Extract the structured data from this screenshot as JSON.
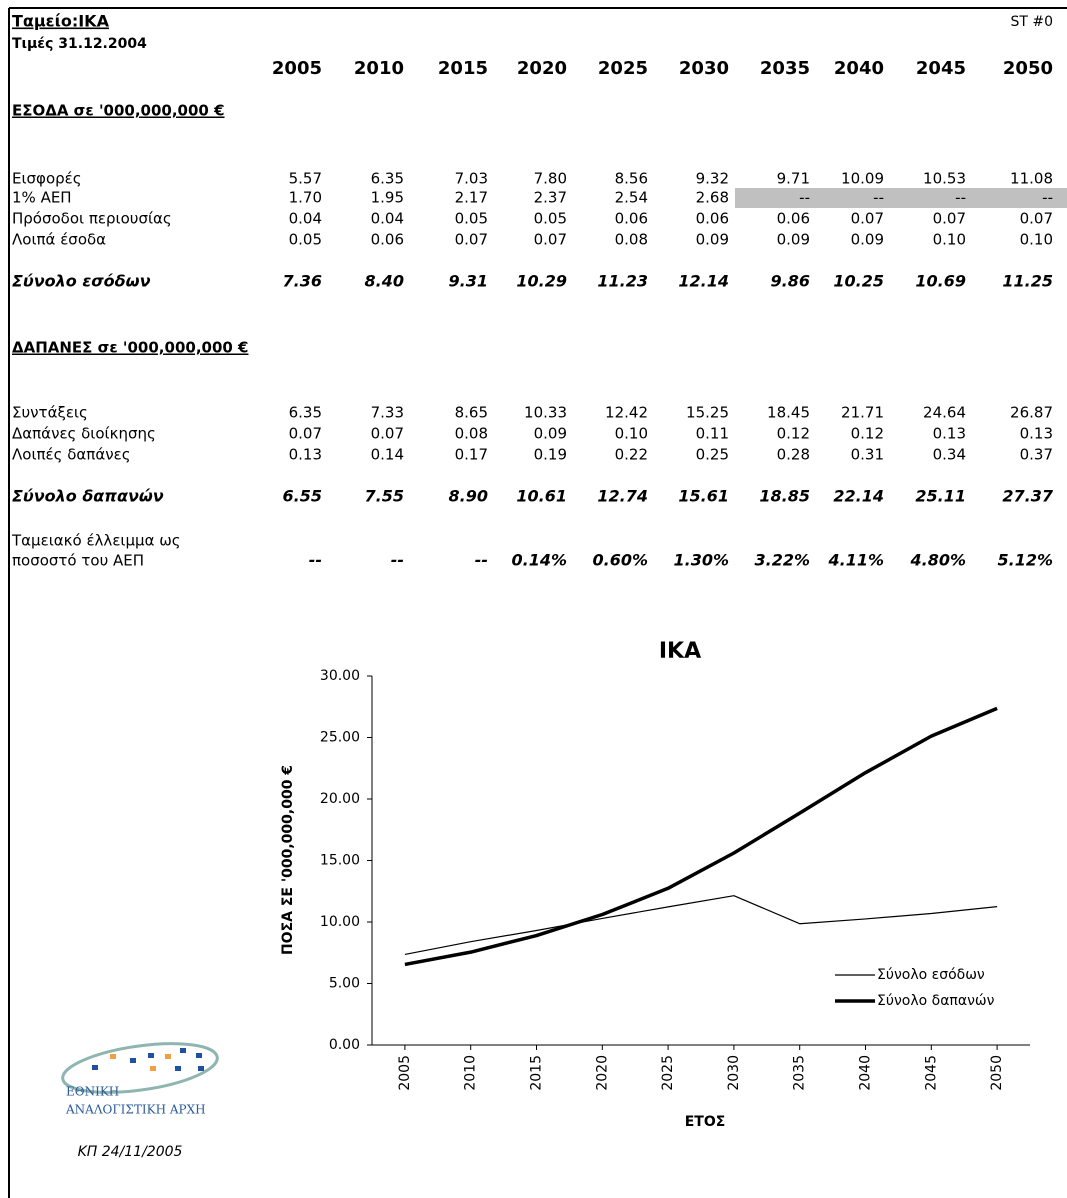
{
  "header": {
    "title": "Ταμείο:ΙΚΑ",
    "subtitle": "Τιμές 31.12.2004",
    "code": "ST #0"
  },
  "table": {
    "years": [
      "2005",
      "2010",
      "2015",
      "2020",
      "2025",
      "2030",
      "2035",
      "2040",
      "2045",
      "2050"
    ],
    "income": {
      "heading": "ΕΣΟΔΑ σε '000,000,000 €",
      "rows": [
        {
          "label": "Εισφορές",
          "values": [
            "5.57",
            "6.35",
            "7.03",
            "7.80",
            "8.56",
            "9.32",
            "9.71",
            "10.09",
            "10.53",
            "11.08"
          ]
        },
        {
          "label": "1% ΑΕΠ",
          "values": [
            "1.70",
            "1.95",
            "2.17",
            "2.37",
            "2.54",
            "2.68",
            "--",
            "--",
            "--",
            "--"
          ]
        },
        {
          "label": "Πρόσοδοι περιουσίας",
          "values": [
            "0.04",
            "0.04",
            "0.05",
            "0.05",
            "0.06",
            "0.06",
            "0.06",
            "0.07",
            "0.07",
            "0.07"
          ]
        },
        {
          "label": "Λοιπά έσοδα",
          "values": [
            "0.05",
            "0.06",
            "0.07",
            "0.07",
            "0.08",
            "0.09",
            "0.09",
            "0.09",
            "0.10",
            "0.10"
          ]
        }
      ],
      "total": {
        "label": "Σύνολο εσόδων",
        "values": [
          "7.36",
          "8.40",
          "9.31",
          "10.29",
          "11.23",
          "12.14",
          "9.86",
          "10.25",
          "10.69",
          "11.25"
        ]
      }
    },
    "expenses": {
      "heading": "ΔΑΠΑΝΕΣ σε '000,000,000 €",
      "rows": [
        {
          "label": "Συντάξεις",
          "values": [
            "6.35",
            "7.33",
            "8.65",
            "10.33",
            "12.42",
            "15.25",
            "18.45",
            "21.71",
            "24.64",
            "26.87"
          ]
        },
        {
          "label": "Δαπάνες διοίκησης",
          "values": [
            "0.07",
            "0.07",
            "0.08",
            "0.09",
            "0.10",
            "0.11",
            "0.12",
            "0.12",
            "0.13",
            "0.13"
          ]
        },
        {
          "label": "Λοιπές δαπάνες",
          "values": [
            "0.13",
            "0.14",
            "0.17",
            "0.19",
            "0.22",
            "0.25",
            "0.28",
            "0.31",
            "0.34",
            "0.37"
          ]
        }
      ],
      "total": {
        "label": "Σύνολο δαπανών",
        "values": [
          "6.55",
          "7.55",
          "8.90",
          "10.61",
          "12.74",
          "15.61",
          "18.85",
          "22.14",
          "25.11",
          "27.37"
        ]
      }
    },
    "deficit": {
      "label": [
        "Ταμειακό έλλειμμα ως",
        "ποσοστό του ΑΕΠ"
      ],
      "values": [
        "--",
        "--",
        "--",
        "0.14%",
        "0.60%",
        "1.30%",
        "3.22%",
        "4.11%",
        "4.80%",
        "5.12%"
      ]
    }
  },
  "chart_data": {
    "type": "line",
    "title": "ΙΚΑ",
    "x_label": "ΕΤΟΣ",
    "y_label": "ΠΟΣΑ ΣΕ '000,000,000 €",
    "x": [
      2005,
      2010,
      2015,
      2020,
      2025,
      2030,
      2035,
      2040,
      2045,
      2050
    ],
    "xlim": [
      2002.5,
      2052.5
    ],
    "xticks": [
      2005,
      2010,
      2015,
      2020,
      2025,
      2030,
      2035,
      2040,
      2045,
      2050
    ],
    "ylim": [
      0,
      30
    ],
    "yticks": [
      {
        "value": 0,
        "label": "0.00"
      },
      {
        "value": 5,
        "label": "5.00"
      },
      {
        "value": 10,
        "label": "10.00"
      },
      {
        "value": 15,
        "label": "15.00"
      },
      {
        "value": 20,
        "label": "20.00"
      },
      {
        "value": 25,
        "label": "25.00"
      },
      {
        "value": 30,
        "label": "30.00"
      }
    ],
    "legend": "lower right",
    "series": [
      {
        "name": "Σύνολο εσόδων",
        "color": "#000000",
        "width": 1.2,
        "values": [
          7.36,
          8.4,
          9.31,
          10.29,
          11.23,
          12.14,
          9.86,
          10.25,
          10.69,
          11.25
        ]
      },
      {
        "name": "Σύνολο δαπανών",
        "color": "#000000",
        "width": 3.5,
        "values": [
          6.55,
          7.55,
          8.9,
          10.61,
          12.74,
          15.61,
          18.85,
          22.14,
          25.11,
          27.37
        ]
      }
    ]
  },
  "footer": {
    "logo": [
      "ΕΘΝΙΚΗ",
      "ΑΝΑΛΟΓΙΣΤΙΚΗ ΑΡΧΗ"
    ],
    "date": "ΚΠ 24/11/2005"
  }
}
